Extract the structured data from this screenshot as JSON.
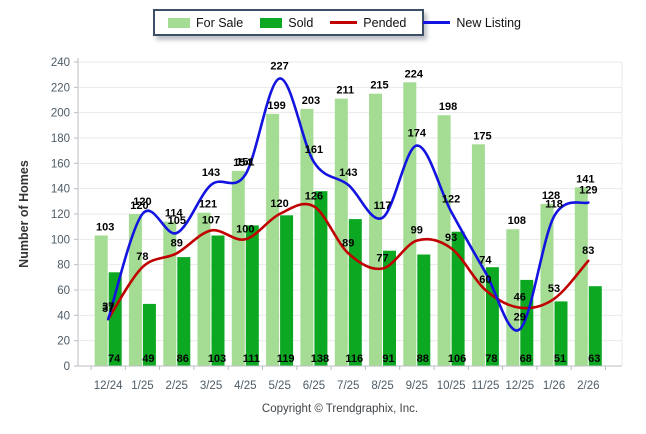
{
  "legend": {
    "items": [
      {
        "label": "For Sale",
        "marker": "box",
        "color": "#a3dc92"
      },
      {
        "label": "Sold",
        "marker": "box",
        "color": "#0da822"
      },
      {
        "label": "Pended",
        "marker": "line",
        "color": "#c00000"
      },
      {
        "label": "New Listing",
        "marker": "line",
        "color": "#1414e0"
      }
    ]
  },
  "footer": {
    "copyright": "Copyright © Trendgraphix, Inc."
  },
  "chart_data": {
    "type": "bar",
    "title": "",
    "xlabel": "",
    "ylabel": "Number of Homes",
    "ylim": [
      0,
      240
    ],
    "ytick_step": 20,
    "yticks": [
      0,
      20,
      40,
      60,
      80,
      100,
      120,
      140,
      160,
      180,
      200,
      220,
      240
    ],
    "grid": true,
    "legend_position": "top",
    "categories": [
      "12/24",
      "1/25",
      "2/25",
      "3/25",
      "4/25",
      "5/25",
      "6/25",
      "7/25",
      "8/25",
      "9/25",
      "10/25",
      "11/25",
      "12/25",
      "1/26",
      "2/26"
    ],
    "series": [
      {
        "name": "For Sale",
        "kind": "bar",
        "color": "#a3dc92",
        "label_position": "above-bar",
        "values": [
          103,
          120,
          114,
          121,
          154,
          199,
          203,
          211,
          215,
          224,
          198,
          175,
          108,
          128,
          141
        ]
      },
      {
        "name": "Sold",
        "kind": "bar",
        "color": "#0da822",
        "label_position": "bar-bottom",
        "values": [
          74,
          49,
          86,
          103,
          111,
          119,
          138,
          116,
          91,
          88,
          106,
          78,
          68,
          51,
          63
        ]
      },
      {
        "name": "Pended",
        "kind": "line",
        "color": "#c00000",
        "label_position": "above-point",
        "values": [
          37,
          78,
          89,
          107,
          100,
          120,
          126,
          89,
          77,
          99,
          93,
          60,
          46,
          53,
          83
        ]
      },
      {
        "name": "New Listing",
        "kind": "line",
        "color": "#1414e0",
        "label_position": "above-point",
        "values": [
          37,
          120,
          105,
          143,
          151,
          227,
          161,
          143,
          117,
          174,
          122,
          74,
          29,
          118,
          129
        ]
      }
    ],
    "colors": {
      "grid": "#eaeaea",
      "axis": "#b8bec4",
      "tick_text": "#4d5b66",
      "data_label": "#000000",
      "ylabel_text": "#333333",
      "copyright_text": "#3f4448"
    }
  }
}
